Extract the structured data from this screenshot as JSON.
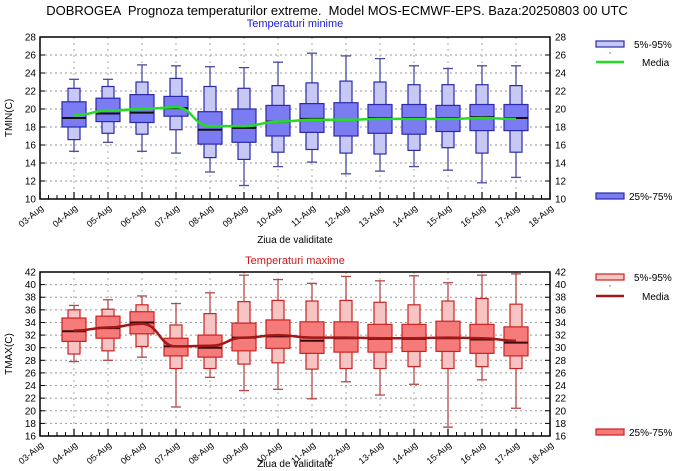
{
  "title": "DOBROGEA  Prognoza temperaturilor extreme.  Model MOS-ECMWF-EPS. Baza:20250803 00 UTC",
  "chart_data": [
    {
      "type": "box",
      "id": "tmin",
      "title": "Temperaturi minime",
      "xlabel": "Ziua de validitate",
      "ylabel": "TMIN(C)",
      "ylim": [
        10,
        28
      ],
      "yticks": [
        10,
        12,
        14,
        16,
        18,
        20,
        22,
        24,
        26,
        28
      ],
      "grid": true,
      "x_ticks": [
        "03-Aug",
        "04-Aug",
        "05-Aug",
        "06-Aug",
        "07-Aug",
        "08-Aug",
        "09-Aug",
        "10-Aug",
        "11-Aug",
        "12-Aug",
        "13-Aug",
        "14-Aug",
        "15-Aug",
        "16-Aug",
        "17-Aug",
        "18-Aug"
      ],
      "categories": [
        "04-Aug",
        "05-Aug",
        "06-Aug",
        "07-Aug",
        "08-Aug",
        "09-Aug",
        "10-Aug",
        "11-Aug",
        "12-Aug",
        "13-Aug",
        "14-Aug",
        "15-Aug",
        "16-Aug",
        "17-Aug"
      ],
      "min": [
        15.3,
        16.3,
        15.3,
        15.1,
        13.0,
        11.5,
        13.6,
        14.1,
        12.8,
        13.1,
        13.6,
        13.2,
        11.8,
        12.4
      ],
      "p5": [
        16.6,
        17.3,
        17.2,
        17.7,
        14.6,
        14.4,
        15.2,
        15.5,
        15.1,
        15.0,
        15.4,
        15.7,
        15.1,
        15.2
      ],
      "p25": [
        18.0,
        18.6,
        18.5,
        19.2,
        16.1,
        16.3,
        17.0,
        17.4,
        17.0,
        17.3,
        17.2,
        17.5,
        17.6,
        17.6
      ],
      "median": [
        19.0,
        19.5,
        19.6,
        20.1,
        17.7,
        17.9,
        18.6,
        18.9,
        18.8,
        19.0,
        19.0,
        19.0,
        19.1,
        19.0
      ],
      "p75": [
        20.8,
        21.2,
        21.6,
        21.4,
        19.7,
        20.0,
        20.4,
        20.6,
        20.7,
        20.5,
        20.5,
        20.4,
        20.5,
        20.5
      ],
      "p95": [
        22.3,
        22.5,
        23.0,
        23.4,
        22.5,
        22.3,
        22.6,
        22.9,
        23.1,
        23.0,
        22.7,
        22.7,
        22.7,
        22.6
      ],
      "max": [
        23.3,
        23.3,
        24.9,
        24.8,
        24.7,
        24.6,
        25.2,
        26.2,
        25.9,
        25.6,
        24.8,
        24.5,
        24.8,
        24.8
      ],
      "mean": [
        19.3,
        19.8,
        20.0,
        20.2,
        18.1,
        18.1,
        18.6,
        18.8,
        18.8,
        18.9,
        18.9,
        18.9,
        19.0,
        18.9
      ],
      "colors": {
        "box_outer": "#c8c8f4",
        "box_inner": "#7b7bf2",
        "edge": "#2a2aa8",
        "whisker": "#4a4aa0",
        "median": "#111111",
        "mean": "#22dd22",
        "title": "#1a1acc"
      },
      "legend": {
        "outer": "5%-95%",
        "mean": "Media",
        "inner": "25%-75%",
        "placement": "right"
      }
    },
    {
      "type": "box",
      "id": "tmax",
      "title": "Temperaturi maxime",
      "xlabel": "Ziua de validitate",
      "ylabel": "TMAX(C)",
      "ylim": [
        16,
        42
      ],
      "yticks": [
        16,
        18,
        20,
        22,
        24,
        26,
        28,
        30,
        32,
        34,
        36,
        38,
        40,
        42
      ],
      "grid": true,
      "x_ticks": [
        "03-Aug",
        "04-Aug",
        "05-Aug",
        "06-Aug",
        "07-Aug",
        "08-Aug",
        "09-Aug",
        "10-Aug",
        "11-Aug",
        "12-Aug",
        "13-Aug",
        "14-Aug",
        "15-Aug",
        "16-Aug",
        "17-Aug",
        "18-Aug"
      ],
      "categories": [
        "04-Aug",
        "05-Aug",
        "06-Aug",
        "07-Aug",
        "08-Aug",
        "09-Aug",
        "10-Aug",
        "11-Aug",
        "12-Aug",
        "13-Aug",
        "14-Aug",
        "15-Aug",
        "16-Aug",
        "17-Aug"
      ],
      "min": [
        27.8,
        28.0,
        28.5,
        20.6,
        25.3,
        23.2,
        23.4,
        21.9,
        24.6,
        22.5,
        24.2,
        17.4,
        24.9,
        20.4
      ],
      "p5": [
        29.0,
        29.5,
        30.2,
        26.7,
        26.7,
        27.4,
        27.6,
        26.6,
        26.7,
        26.7,
        27.0,
        26.7,
        27.0,
        26.7
      ],
      "p25": [
        31.0,
        31.5,
        32.2,
        28.7,
        28.5,
        29.5,
        29.9,
        29.1,
        29.3,
        29.3,
        29.4,
        29.4,
        29.1,
        28.7
      ],
      "median": [
        32.6,
        33.1,
        34.0,
        30.2,
        30.0,
        31.6,
        31.8,
        31.1,
        31.5,
        31.4,
        31.4,
        31.5,
        31.3,
        30.8
      ],
      "p75": [
        34.7,
        35.0,
        35.7,
        31.5,
        32.0,
        33.9,
        34.4,
        34.1,
        34.1,
        33.7,
        33.7,
        34.2,
        33.7,
        33.3
      ],
      "p95": [
        36.0,
        36.1,
        36.8,
        33.6,
        35.4,
        37.3,
        37.5,
        37.4,
        37.5,
        37.2,
        36.8,
        37.4,
        37.8,
        36.9
      ],
      "max": [
        36.7,
        37.6,
        38.2,
        37.0,
        38.7,
        41.5,
        40.8,
        40.2,
        41.3,
        40.6,
        41.4,
        40.3,
        41.5,
        41.7
      ],
      "mean": [
        32.7,
        33.2,
        33.8,
        30.2,
        30.3,
        31.6,
        32.0,
        31.6,
        31.6,
        31.5,
        31.5,
        31.6,
        31.5,
        31.1
      ],
      "colors": {
        "box_outer": "#f7c4c4",
        "box_inner": "#f57a7a",
        "edge": "#cc2222",
        "whisker": "#b84848",
        "median": "#3a0a0a",
        "mean": "#a01818",
        "title": "#cc1a1a"
      },
      "legend": {
        "outer": "5%-95%",
        "mean": "Media",
        "inner": "25%-75%",
        "placement": "right"
      }
    }
  ]
}
